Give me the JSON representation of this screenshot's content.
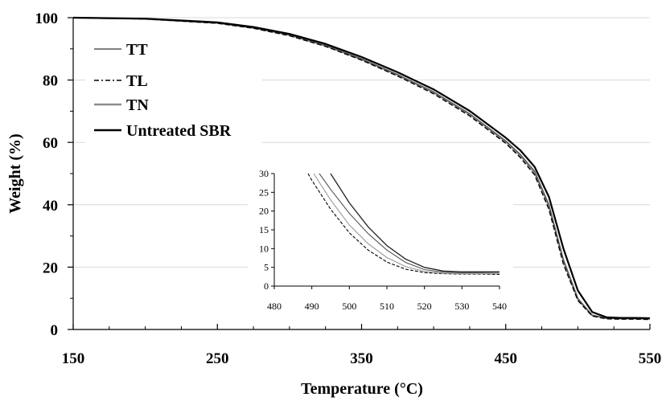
{
  "chart_data": [
    {
      "id": "main",
      "type": "line",
      "title": "",
      "xlabel": "Temperature (°C)",
      "ylabel": "Weight (%)",
      "xlim": [
        150,
        550
      ],
      "ylim": [
        0,
        100
      ],
      "xticks": [
        150,
        250,
        350,
        450,
        550
      ],
      "xtick_labels": [
        "150",
        "250",
        "350",
        "450",
        "550"
      ],
      "yticks": [
        0,
        20,
        40,
        60,
        80,
        100
      ],
      "ytick_labels": [
        "0",
        "20",
        "40",
        "60",
        "80",
        "100"
      ],
      "grid": "horizontal",
      "legend_position": "top-left",
      "series": [
        {
          "name": "TT",
          "color": "#555555",
          "dash": "solid",
          "x": [
            150,
            200,
            250,
            275,
            300,
            325,
            350,
            375,
            400,
            425,
            450,
            460,
            470,
            480,
            490,
            500,
            510,
            520,
            530,
            540,
            550
          ],
          "y": [
            100,
            99.6,
            98.3,
            96.8,
            94.5,
            91.2,
            86.8,
            81.8,
            76.2,
            69.2,
            60.5,
            56.2,
            50.8,
            40,
            22.5,
            10,
            4.6,
            3.6,
            3.5,
            3.5,
            3.4
          ]
        },
        {
          "name": "TL",
          "color": "#000000",
          "dash": "dashed",
          "x": [
            150,
            200,
            250,
            275,
            300,
            325,
            350,
            375,
            400,
            425,
            450,
            460,
            470,
            480,
            490,
            500,
            510,
            520,
            530,
            540,
            550
          ],
          "y": [
            100,
            99.6,
            98.2,
            96.6,
            94.2,
            90.8,
            86.4,
            81.3,
            75.6,
            68.5,
            59.7,
            55.2,
            49.6,
            38.5,
            21,
            9.3,
            4.3,
            3.4,
            3.3,
            3.3,
            3.2
          ]
        },
        {
          "name": "TN",
          "color": "#8c8c8c",
          "dash": "solid",
          "x": [
            150,
            200,
            250,
            275,
            300,
            325,
            350,
            375,
            400,
            425,
            450,
            460,
            470,
            480,
            490,
            500,
            510,
            520,
            530,
            540,
            550
          ],
          "y": [
            100,
            99.6,
            98.3,
            96.7,
            94.4,
            91,
            86.6,
            81.6,
            76,
            69,
            60.2,
            55.8,
            50.3,
            39.5,
            22,
            9.7,
            4.5,
            3.6,
            3.5,
            3.5,
            3.4
          ]
        },
        {
          "name": "Untreated SBR",
          "color": "#000000",
          "dash": "solid",
          "x": [
            150,
            200,
            250,
            275,
            300,
            325,
            350,
            375,
            400,
            425,
            450,
            460,
            470,
            480,
            490,
            500,
            510,
            520,
            530,
            540,
            550
          ],
          "y": [
            100,
            99.7,
            98.5,
            97,
            94.8,
            91.6,
            87.4,
            82.5,
            77,
            70.1,
            61.5,
            57.5,
            52.2,
            42.5,
            26,
            12.5,
            5.6,
            3.9,
            3.7,
            3.7,
            3.6
          ]
        }
      ]
    },
    {
      "id": "inset",
      "type": "line",
      "xlim": [
        480,
        540
      ],
      "ylim": [
        0,
        30
      ],
      "xticks": [
        480,
        490,
        500,
        510,
        520,
        530,
        540
      ],
      "xtick_labels": [
        "480",
        "490",
        "500",
        "510",
        "520",
        "530",
        "540"
      ],
      "yticks": [
        0,
        5,
        10,
        15,
        20,
        25,
        30
      ],
      "ytick_labels": [
        "0",
        "5",
        "10",
        "15",
        "20",
        "25",
        "30"
      ],
      "grid": "none",
      "series": [
        {
          "name": "TT",
          "color": "#555555",
          "dash": "solid",
          "x": [
            492,
            495,
            500,
            505,
            510,
            515,
            520,
            525,
            530,
            535,
            540
          ],
          "y": [
            30,
            25.8,
            19.4,
            14,
            9.6,
            6.3,
            4.4,
            3.7,
            3.5,
            3.5,
            3.4
          ]
        },
        {
          "name": "TL",
          "color": "#000000",
          "dash": "dashed",
          "x": [
            489,
            490,
            495,
            500,
            505,
            510,
            515,
            520,
            525,
            530,
            535,
            540
          ],
          "y": [
            30,
            28.2,
            20.5,
            14.2,
            9.6,
            6.4,
            4.5,
            3.6,
            3.3,
            3.2,
            3.2,
            3.1
          ]
        },
        {
          "name": "TN",
          "color": "#999999",
          "dash": "solid",
          "x": [
            490.5,
            495,
            500,
            505,
            510,
            515,
            520,
            525,
            530,
            535,
            540
          ],
          "y": [
            30,
            23,
            16.3,
            11.3,
            7.6,
            5.2,
            3.9,
            3.4,
            3.3,
            3.3,
            3.3
          ]
        },
        {
          "name": "Untreated SBR",
          "color": "#222222",
          "dash": "solid",
          "x": [
            495,
            500,
            505,
            510,
            515,
            520,
            525,
            530,
            535,
            540
          ],
          "y": [
            30,
            22.2,
            15.8,
            10.8,
            7.2,
            5,
            4,
            3.8,
            3.8,
            3.8
          ]
        }
      ]
    }
  ]
}
